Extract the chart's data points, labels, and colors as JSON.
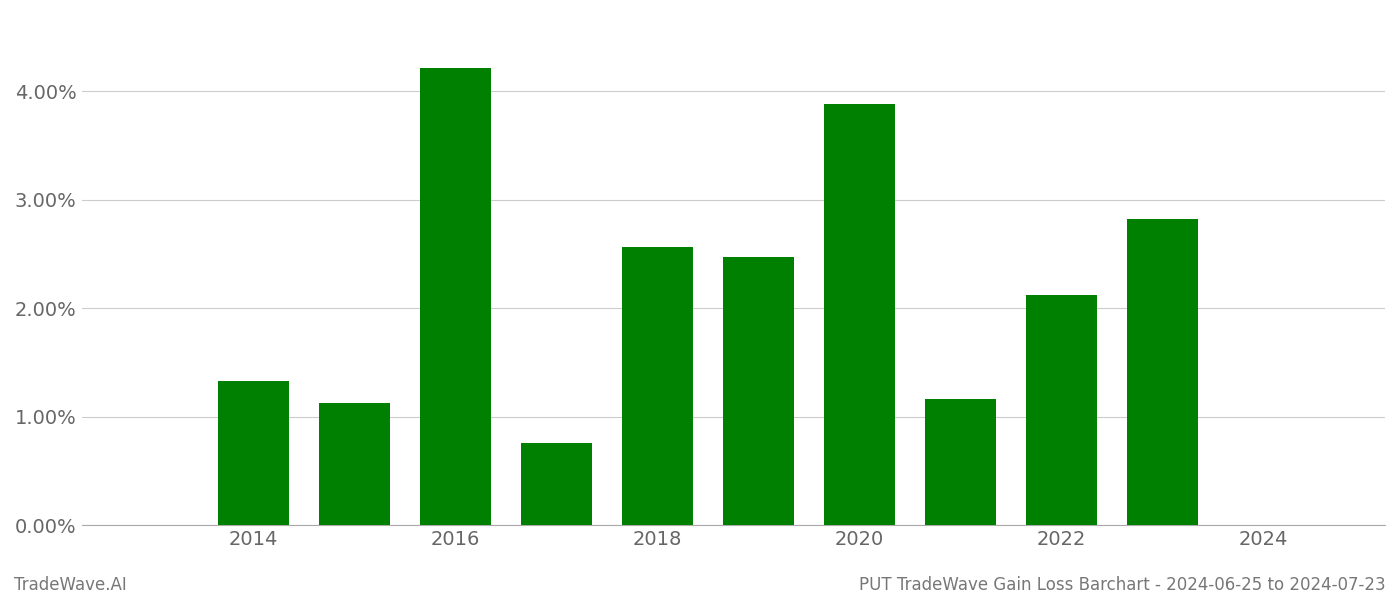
{
  "years": [
    2013,
    2014,
    2015,
    2016,
    2017,
    2018,
    2019,
    2020,
    2021,
    2022,
    2023,
    2024
  ],
  "values": [
    0.0,
    1.33,
    1.13,
    4.22,
    0.76,
    2.57,
    2.47,
    3.88,
    1.16,
    2.12,
    2.82,
    0.0
  ],
  "bar_color": "#008000",
  "background_color": "#ffffff",
  "footer_left": "TradeWave.AI",
  "footer_right": "PUT TradeWave Gain Loss Barchart - 2024-06-25 to 2024-07-23",
  "ylim": [
    0.0,
    4.65
  ],
  "yticks": [
    0.0,
    1.0,
    2.0,
    3.0,
    4.0
  ],
  "xtick_positions": [
    2014,
    2016,
    2018,
    2020,
    2022,
    2024
  ],
  "xtick_labels": [
    "2014",
    "2016",
    "2018",
    "2020",
    "2022",
    "2024"
  ],
  "grid_color": "#cccccc",
  "footer_color": "#777777",
  "bar_width": 0.7,
  "xlim": [
    2012.3,
    2025.2
  ]
}
